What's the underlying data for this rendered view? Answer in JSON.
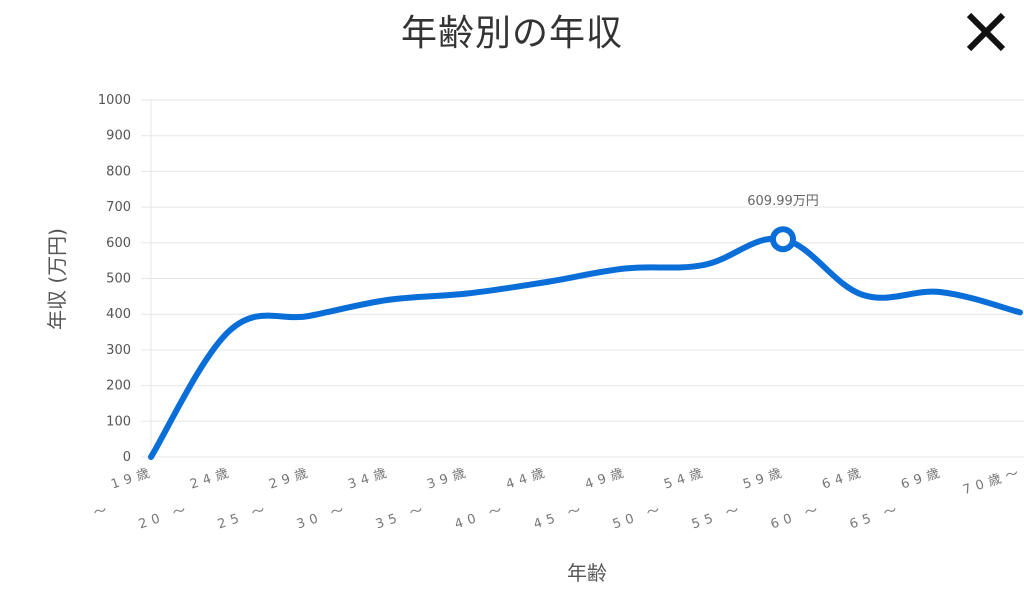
{
  "header": {
    "title": "年齢別の年収",
    "close_icon": "close-icon"
  },
  "chart_data": {
    "type": "line",
    "title": "年齢別の年収",
    "xlabel": "年齢",
    "ylabel": "年収 (万円)",
    "ylim": [
      0,
      1000
    ],
    "yticks": [
      0,
      100,
      200,
      300,
      400,
      500,
      600,
      700,
      800,
      900,
      1000
    ],
    "grid": true,
    "categories": [
      "〜 19歳",
      "20 〜 24歳",
      "25 〜 29歳",
      "30 〜 34歳",
      "35 〜 39歳",
      "40 〜 44歳",
      "45 〜 49歳",
      "50 〜 54歳",
      "55 〜 59歳",
      "60 〜 64歳",
      "65 〜 69歳",
      "70歳〜"
    ],
    "tick_labels": [
      {
        "line1": "19歳",
        "line2": "〜"
      },
      {
        "line1": "24歳",
        "line2": "20 〜"
      },
      {
        "line1": "29歳",
        "line2": "25 〜"
      },
      {
        "line1": "34歳",
        "line2": "30 〜"
      },
      {
        "line1": "39歳",
        "line2": "35 〜"
      },
      {
        "line1": "44歳",
        "line2": "40 〜"
      },
      {
        "line1": "49歳",
        "line2": "45 〜"
      },
      {
        "line1": "54歳",
        "line2": "50 〜"
      },
      {
        "line1": "59歳",
        "line2": "55 〜"
      },
      {
        "line1": "64歳",
        "line2": "60 〜"
      },
      {
        "line1": "69歳",
        "line2": "65 〜"
      },
      {
        "line1": "70歳〜",
        "line2": ""
      }
    ],
    "series": [
      {
        "color": "#0a6ed8",
        "values": [
          0,
          355,
          395,
          440,
          458,
          490,
          528,
          538,
          609.99,
          455,
          462,
          405
        ]
      }
    ],
    "highlight": {
      "index": 8,
      "label": "609.99万円"
    }
  }
}
